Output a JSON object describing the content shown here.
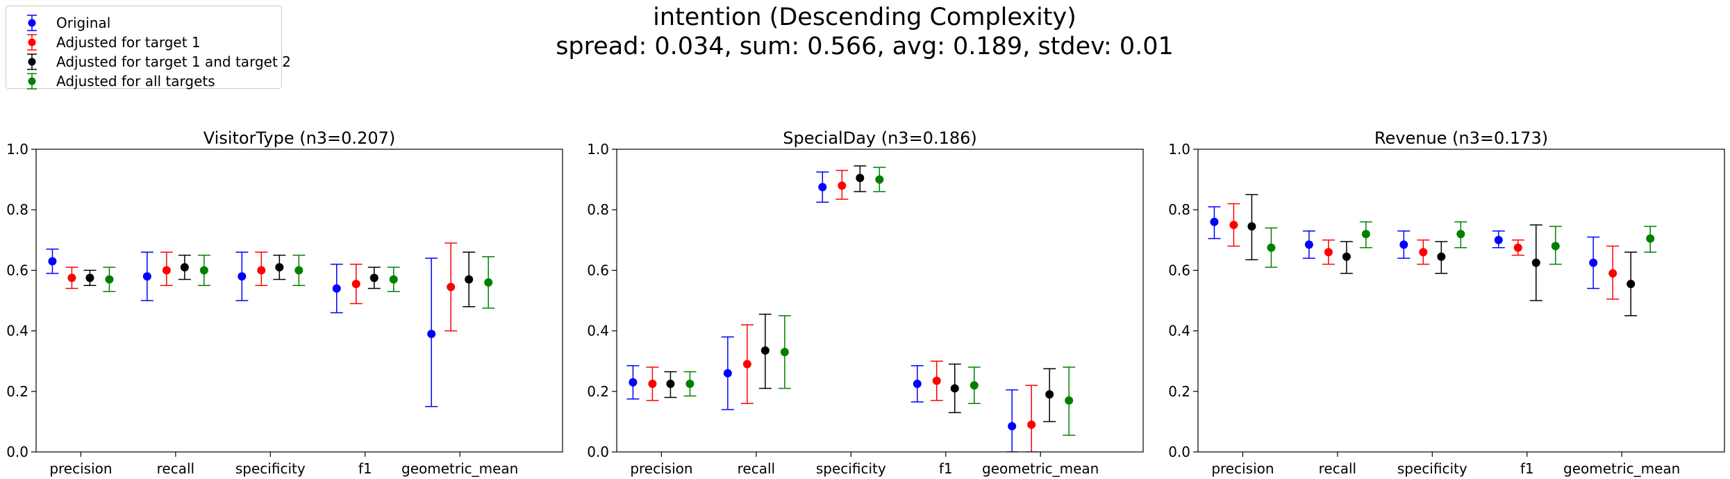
{
  "suptitle": {
    "line1": "intention (Descending Complexity)",
    "line2": "spread: 0.034, sum: 0.566, avg: 0.189, stdev: 0.01"
  },
  "legend": [
    {
      "name": "Original",
      "color": "#0000ff"
    },
    {
      "name": "Adjusted for target 1",
      "color": "#ff0000"
    },
    {
      "name": "Adjusted for target 1 and target 2",
      "color": "#000000"
    },
    {
      "name": "Adjusted for all targets",
      "color": "#008000"
    }
  ],
  "chart_data": [
    {
      "type": "scatter",
      "title": "VisitorType (n3=0.207)",
      "categories": [
        "precision",
        "recall",
        "specificity",
        "f1",
        "geometric_mean"
      ],
      "ylim": [
        0,
        1.0
      ],
      "yticks": [
        "0.0",
        "0.2",
        "0.4",
        "0.6",
        "0.8",
        "1.0"
      ],
      "series": [
        {
          "name": "Original",
          "color": "#0000ff",
          "values": [
            0.63,
            0.58,
            0.58,
            0.54,
            0.39
          ],
          "lower": [
            0.59,
            0.5,
            0.5,
            0.46,
            0.15
          ],
          "upper": [
            0.67,
            0.66,
            0.66,
            0.62,
            0.64
          ]
        },
        {
          "name": "Adjusted for target 1",
          "color": "#ff0000",
          "values": [
            0.575,
            0.6,
            0.6,
            0.555,
            0.545
          ],
          "lower": [
            0.54,
            0.55,
            0.55,
            0.49,
            0.4
          ],
          "upper": [
            0.61,
            0.66,
            0.66,
            0.62,
            0.69
          ]
        },
        {
          "name": "Adjusted for target 1 and target 2",
          "color": "#000000",
          "values": [
            0.575,
            0.61,
            0.61,
            0.575,
            0.57
          ],
          "lower": [
            0.55,
            0.57,
            0.57,
            0.54,
            0.48
          ],
          "upper": [
            0.6,
            0.65,
            0.65,
            0.61,
            0.66
          ]
        },
        {
          "name": "Adjusted for all targets",
          "color": "#008000",
          "values": [
            0.57,
            0.6,
            0.6,
            0.57,
            0.56
          ],
          "lower": [
            0.53,
            0.55,
            0.55,
            0.53,
            0.475
          ],
          "upper": [
            0.61,
            0.65,
            0.65,
            0.61,
            0.645
          ]
        }
      ]
    },
    {
      "type": "scatter",
      "title": "SpecialDay (n3=0.186)",
      "categories": [
        "precision",
        "recall",
        "specificity",
        "f1",
        "geometric_mean"
      ],
      "ylim": [
        0,
        1.0
      ],
      "yticks": [
        "0.0",
        "0.2",
        "0.4",
        "0.6",
        "0.8",
        "1.0"
      ],
      "series": [
        {
          "name": "Original",
          "color": "#0000ff",
          "values": [
            0.23,
            0.26,
            0.875,
            0.225,
            0.085
          ],
          "lower": [
            0.175,
            0.14,
            0.825,
            0.165,
            0.0
          ],
          "upper": [
            0.285,
            0.38,
            0.925,
            0.285,
            0.205
          ]
        },
        {
          "name": "Adjusted for target 1",
          "color": "#ff0000",
          "values": [
            0.225,
            0.29,
            0.88,
            0.235,
            0.09
          ],
          "lower": [
            0.17,
            0.16,
            0.835,
            0.17,
            0.0
          ],
          "upper": [
            0.28,
            0.42,
            0.93,
            0.3,
            0.22
          ]
        },
        {
          "name": "Adjusted for target 1 and target 2",
          "color": "#000000",
          "values": [
            0.225,
            0.335,
            0.905,
            0.21,
            0.19
          ],
          "lower": [
            0.18,
            0.21,
            0.86,
            0.13,
            0.1
          ],
          "upper": [
            0.265,
            0.455,
            0.945,
            0.29,
            0.275
          ]
        },
        {
          "name": "Adjusted for all targets",
          "color": "#008000",
          "values": [
            0.225,
            0.33,
            0.9,
            0.22,
            0.17
          ],
          "lower": [
            0.185,
            0.21,
            0.86,
            0.16,
            0.055
          ],
          "upper": [
            0.265,
            0.45,
            0.94,
            0.28,
            0.28
          ]
        }
      ]
    },
    {
      "type": "scatter",
      "title": "Revenue (n3=0.173)",
      "categories": [
        "precision",
        "recall",
        "specificity",
        "f1",
        "geometric_mean"
      ],
      "ylim": [
        0,
        1.0
      ],
      "yticks": [
        "0.0",
        "0.2",
        "0.4",
        "0.6",
        "0.8",
        "1.0"
      ],
      "series": [
        {
          "name": "Original",
          "color": "#0000ff",
          "values": [
            0.76,
            0.685,
            0.685,
            0.7,
            0.625
          ],
          "lower": [
            0.705,
            0.64,
            0.64,
            0.675,
            0.54
          ],
          "upper": [
            0.81,
            0.73,
            0.73,
            0.73,
            0.71
          ]
        },
        {
          "name": "Adjusted for target 1",
          "color": "#ff0000",
          "values": [
            0.75,
            0.66,
            0.66,
            0.675,
            0.59
          ],
          "lower": [
            0.68,
            0.62,
            0.62,
            0.65,
            0.505
          ],
          "upper": [
            0.82,
            0.7,
            0.7,
            0.7,
            0.68
          ]
        },
        {
          "name": "Adjusted for target 1 and target 2",
          "color": "#000000",
          "values": [
            0.745,
            0.645,
            0.645,
            0.625,
            0.555
          ],
          "lower": [
            0.635,
            0.59,
            0.59,
            0.5,
            0.45
          ],
          "upper": [
            0.85,
            0.695,
            0.695,
            0.75,
            0.66
          ]
        },
        {
          "name": "Adjusted for all targets",
          "color": "#008000",
          "values": [
            0.675,
            0.72,
            0.72,
            0.68,
            0.705
          ],
          "lower": [
            0.61,
            0.675,
            0.675,
            0.62,
            0.66
          ],
          "upper": [
            0.74,
            0.76,
            0.76,
            0.745,
            0.745
          ]
        }
      ]
    }
  ]
}
